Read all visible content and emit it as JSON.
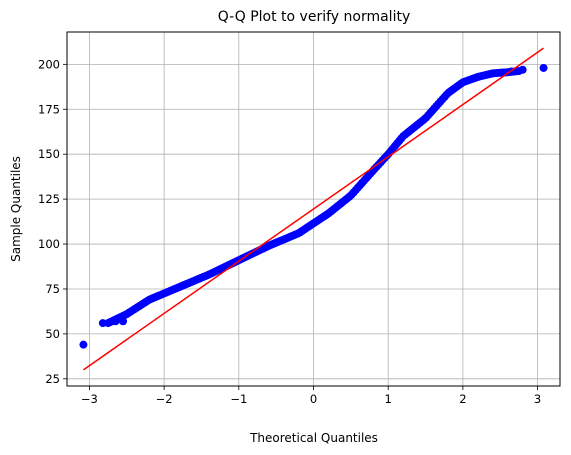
{
  "chart_data": {
    "type": "scatter",
    "title": "Q-Q Plot to verify normality",
    "xlabel": "Theoretical Quantiles",
    "ylabel": "Sample Quantiles",
    "xlim": [
      -3.3,
      3.3
    ],
    "ylim": [
      21,
      218
    ],
    "xticks": [
      -3,
      -2,
      -1,
      0,
      1,
      2,
      3
    ],
    "xtick_labels": [
      "−3",
      "−2",
      "−1",
      "0",
      "1",
      "2",
      "3"
    ],
    "yticks": [
      25,
      50,
      75,
      100,
      125,
      150,
      175,
      200
    ],
    "ytick_labels": [
      "25",
      "50",
      "75",
      "100",
      "125",
      "150",
      "175",
      "200"
    ],
    "grid": true,
    "marker_color": "#0000ff",
    "line_color": "#ff0000",
    "reference_line": {
      "x": [
        -3.08,
        3.08
      ],
      "y": [
        30,
        209
      ]
    },
    "quantile_curve": {
      "x": [
        -2.75,
        -2.5,
        -2.2,
        -1.8,
        -1.4,
        -1.0,
        -0.6,
        -0.2,
        0.2,
        0.5,
        0.8,
        1.0,
        1.2,
        1.5,
        1.8,
        2.0,
        2.2,
        2.4,
        2.6,
        2.75
      ],
      "y": [
        56,
        61,
        69,
        76,
        83,
        91,
        99,
        106,
        117,
        127,
        141,
        150,
        160,
        170,
        184,
        190,
        193,
        195,
        195.6,
        196.3
      ]
    },
    "extreme_points": [
      {
        "x": -3.08,
        "y": 44
      },
      {
        "x": -2.82,
        "y": 56
      },
      {
        "x": -2.65,
        "y": 57
      },
      {
        "x": -2.55,
        "y": 57
      },
      {
        "x": 2.65,
        "y": 196
      },
      {
        "x": 2.8,
        "y": 197
      },
      {
        "x": 3.08,
        "y": 198
      }
    ],
    "n_points": 200
  }
}
